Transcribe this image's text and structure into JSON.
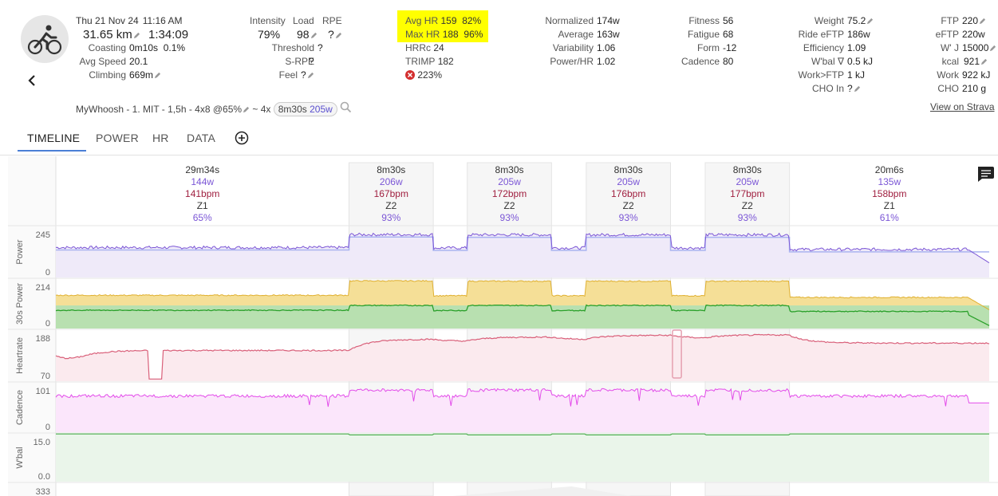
{
  "activity": {
    "date": "Thu 21 Nov 24",
    "time": "11:16 AM",
    "distance": "31.65 km",
    "duration": "1:34:09",
    "coasting_label": "Coasting",
    "coasting_value": "0m10s",
    "coasting_pct": "0.1%",
    "avg_speed_label": "Avg Speed",
    "avg_speed_value": "20.1",
    "climbing_label": "Climbing",
    "climbing_value": "669m",
    "name": "MyWhoosh - 1. MIT - 1,5h - 4x8 @65%",
    "interval_count": "~ 4x",
    "interval_chip": "8m30s",
    "interval_chip_w": "205w"
  },
  "load": {
    "intensity_label": "Intensity",
    "load_label": "Load",
    "rpe_label": "RPE",
    "intensity_value": "79%",
    "load_value": "98",
    "rpe_value": "?",
    "threshold_label": "Threshold",
    "threshold_value": "?",
    "srpe_label": "S-RPE",
    "srpe_value": "?",
    "feel_label": "Feel",
    "feel_value": "?"
  },
  "hr": {
    "avg_label": "Avg HR",
    "avg_value": "159",
    "avg_pct": "82%",
    "max_label": "Max HR",
    "max_value": "188",
    "max_pct": "96%",
    "hrrc_label": "HRRc",
    "hrrc_value": "24",
    "trimp_label": "TRIMP",
    "trimp_value": "182",
    "decoupling": "223%"
  },
  "power": {
    "normalized_label": "Normalized",
    "normalized_value": "174w",
    "average_label": "Average",
    "average_value": "163w",
    "variability_label": "Variability",
    "variability_value": "1.06",
    "powerhr_label": "Power/HR",
    "powerhr_value": "1.02"
  },
  "fitness": {
    "fitness_label": "Fitness",
    "fitness_value": "56",
    "fatigue_label": "Fatigue",
    "fatigue_value": "68",
    "form_label": "Form",
    "form_value": "-12",
    "cadence_label": "Cadence",
    "cadence_value": "80"
  },
  "body": {
    "weight_label": "Weight",
    "weight_value": "75.2",
    "ride_eftp_label": "Ride eFTP",
    "ride_eftp_value": "186w",
    "efficiency_label": "Efficiency",
    "efficiency_value": "1.09",
    "wbal_label": "W'bal ∇",
    "wbal_value": "0.5 kJ",
    "work_ftp_label": "Work>FTP",
    "work_ftp_value": "1 kJ",
    "cho_in_label": "CHO In",
    "cho_in_value": "?"
  },
  "energy": {
    "ftp_label": "FTP",
    "ftp_value": "220",
    "eftp_label": "eFTP",
    "eftp_value": "220w",
    "wj_label": "W' J",
    "wj_value": "15000",
    "kcal_label": "kcal",
    "kcal_value": "921",
    "work_label": "Work",
    "work_value": "922 kJ",
    "cho_label": "CHO",
    "cho_value": "210 g",
    "strava_link": "View on Strava"
  },
  "tabs": [
    "TIMELINE",
    "POWER",
    "HR",
    "DATA"
  ],
  "intervals": [
    {
      "dur": "29m34s",
      "w": "144w",
      "bpm": "141bpm",
      "zone": "Z1",
      "pct": "65%"
    },
    {
      "dur": "8m30s",
      "w": "206w",
      "bpm": "167bpm",
      "zone": "Z2",
      "pct": "93%"
    },
    {
      "dur": "8m30s",
      "w": "205w",
      "bpm": "172bpm",
      "zone": "Z2",
      "pct": "93%"
    },
    {
      "dur": "8m30s",
      "w": "205w",
      "bpm": "176bpm",
      "zone": "Z2",
      "pct": "93%"
    },
    {
      "dur": "8m30s",
      "w": "205w",
      "bpm": "177bpm",
      "zone": "Z2",
      "pct": "93%"
    },
    {
      "dur": "20m6s",
      "w": "135w",
      "bpm": "158bpm",
      "zone": "Z1",
      "pct": "61%"
    }
  ],
  "panels": [
    {
      "label": "Power",
      "max": "245",
      "min": "0"
    },
    {
      "label": "30s Power",
      "max": "214",
      "min": "0"
    },
    {
      "label": "Heartrate",
      "max": "188",
      "min": "70"
    },
    {
      "label": "Cadence",
      "max": "101",
      "min": "0"
    },
    {
      "label": "W'bal",
      "max": "15.0",
      "min": "0.0"
    },
    {
      "label": "",
      "max": "333",
      "min": ""
    }
  ],
  "colors": {
    "power": "#7b56d6",
    "power30": "#2aa02a",
    "power30_fill": "#b8e0b0",
    "power30_peak": "#f5df97",
    "hr": "#d9607a",
    "hr_fill": "#fbeaee",
    "cadence": "#e34bea",
    "cadence_fill": "#fbe6fb",
    "wbal": "#4caf50",
    "wbal_fill": "#eaf5ea",
    "accent": "#4b7fd6",
    "highlight": "#ffff00"
  },
  "chart_data": {
    "type": "line",
    "x_unit": "minutes",
    "x_range": [
      0,
      94.15
    ],
    "segments": [
      {
        "start": 0,
        "end": 29.57,
        "watts": 144,
        "bpm": 141
      },
      {
        "start": 29.57,
        "end": 38.07,
        "watts": 206,
        "bpm": 167
      },
      {
        "start": 38.07,
        "end": 41.5,
        "watts": 142,
        "bpm": 162
      },
      {
        "start": 41.5,
        "end": 50.0,
        "watts": 205,
        "bpm": 172
      },
      {
        "start": 50.0,
        "end": 53.5,
        "watts": 142,
        "bpm": 166
      },
      {
        "start": 53.5,
        "end": 62.0,
        "watts": 205,
        "bpm": 176
      },
      {
        "start": 62.0,
        "end": 65.5,
        "watts": 142,
        "bpm": 169
      },
      {
        "start": 65.5,
        "end": 74.0,
        "watts": 205,
        "bpm": 177
      },
      {
        "start": 74.0,
        "end": 94.15,
        "watts": 135,
        "bpm": 158
      }
    ],
    "series": [
      {
        "name": "Power",
        "ylim": [
          0,
          245
        ]
      },
      {
        "name": "30s Power",
        "ylim": [
          0,
          214
        ]
      },
      {
        "name": "Heartrate",
        "ylim": [
          70,
          188
        ]
      },
      {
        "name": "Cadence",
        "ylim": [
          0,
          101
        ]
      },
      {
        "name": "W'bal",
        "ylim": [
          0,
          15.0
        ]
      }
    ]
  }
}
